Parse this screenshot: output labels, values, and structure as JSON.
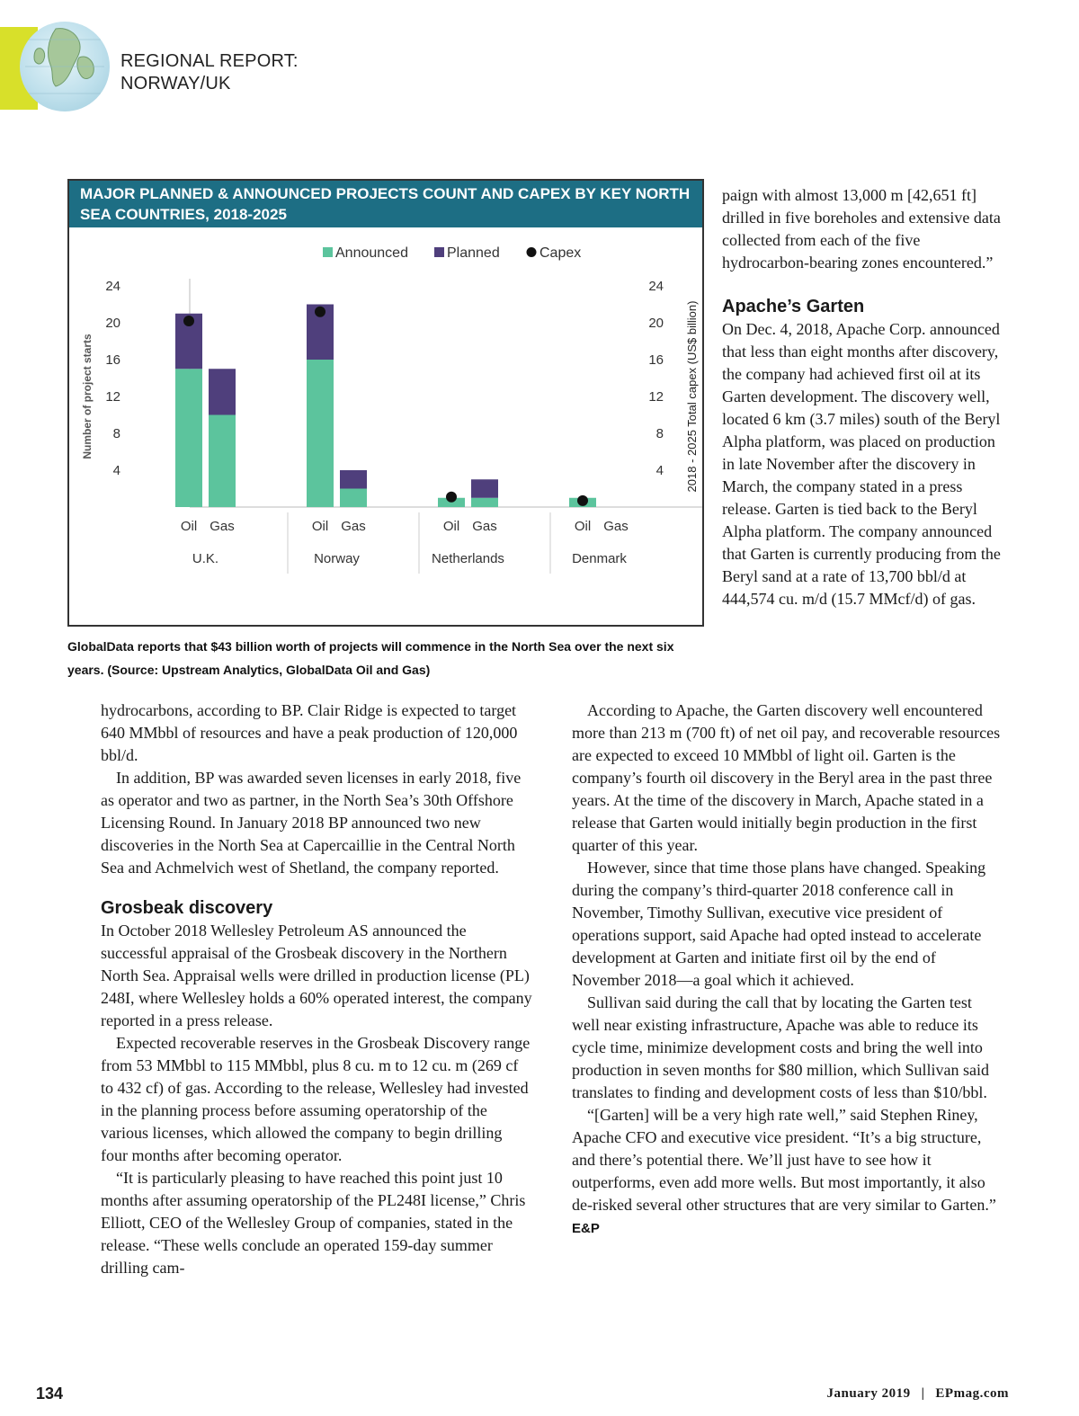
{
  "header": {
    "line1": "REGIONAL REPORT:",
    "line2": "NORWAY/UK"
  },
  "figure": {
    "title": "MAJOR PLANNED & ANNOUNCED PROJECTS COUNT AND CAPEX BY KEY NORTH SEA COUNTRIES, 2018-2025",
    "caption": "GlobalData reports that $43 billion worth of projects will commence in the North Sea over the next six years. (Source: Upstream Analytics, GlobalData Oil and Gas)"
  },
  "chart_data": {
    "type": "bar",
    "stacked": true,
    "title": "MAJOR PLANNED & ANNOUNCED PROJECTS COUNT AND CAPEX BY KEY NORTH SEA COUNTRIES, 2018-2025",
    "ylabel": "Number of project starts",
    "y2label": "2018 - 2025 Total capex (US$ billion)",
    "ylim": [
      0,
      24
    ],
    "y2lim": [
      0,
      24
    ],
    "yticks": [
      "4",
      "8",
      "12",
      "16",
      "20",
      "24"
    ],
    "legend_position": "top",
    "groups": [
      "U.K.",
      "Norway",
      "Netherlands",
      "Denmark"
    ],
    "categories": [
      "Oil",
      "Gas",
      "Oil",
      "Gas",
      "Oil",
      "Gas",
      "Oil",
      "Gas"
    ],
    "series": [
      {
        "name": "Announced",
        "color": "#5cc49d",
        "values": [
          15,
          10,
          16,
          2,
          1,
          1,
          1,
          0
        ]
      },
      {
        "name": "Planned",
        "color": "#4f3f7c",
        "values": [
          6,
          5,
          6,
          2,
          0,
          2,
          0,
          0
        ]
      }
    ],
    "capex": {
      "name": "Capex",
      "color": "#111111",
      "values": [
        20.2,
        21.2,
        1.1,
        0.7
      ]
    },
    "grid": false
  },
  "left_col": {
    "p1": "hydrocarbons, according to BP. Clair Ridge is expected to target 640 MMbbl of resources and have a peak production of 120,000 bbl/d.",
    "p2": "In addition, BP was awarded seven licenses in early 2018, five as operator and two as partner, in the North Sea’s 30th Offshore Licensing Round. In January 2018 BP announced two new discoveries in the North Sea at Capercaillie in the Central North Sea and Achmelvich west of Shetland, the company reported.",
    "h1": "Grosbeak discovery",
    "p3": "In October 2018 Wellesley Petroleum AS announced the successful appraisal of the Grosbeak discovery in the Northern North Sea. Appraisal wells were drilled in production license (PL) 248I, where Wellesley holds a 60% operated interest, the company reported in a press release.",
    "p4": "Expected recoverable reserves in the Grosbeak Discovery range from 53 MMbbl to 115 MMbbl, plus 8 cu. m to 12 cu. m (269 cf to 432 cf) of gas. According to the release, Wellesley had invested in the planning process before assuming operatorship of the various licenses, which allowed the company to begin drilling four months after becoming operator.",
    "p5": "“It is particularly pleasing to have reached this point just 10 months after assuming operatorship of the PL248I license,” Chris Elliott, CEO of the Wellesley Group of companies, stated in the release. “These wells conclude an operated 159-day summer drilling cam-"
  },
  "right_top": {
    "p1": "paign with almost 13,000 m [42,651 ft] drilled in five boreholes and extensive data collected from each of the five hydrocarbon-bearing zones encountered.”",
    "h1": "Apache’s Garten",
    "p2": "On Dec. 4, 2018, Apache Corp. announced that less than eight months after discovery, the company had achieved first oil at its Garten development. The discovery well, located 6 km (3.7 miles) south of the Beryl Alpha platform, was placed on production in late November after the discovery in March, the company stated in a press release. Garten is tied back to the Beryl Alpha platform. The company announced that Garten is currently producing from the Beryl sand at a rate of 13,700 bbl/d at 444,574 cu. m/d (15.7 MMcf/d) of gas."
  },
  "right_col": {
    "p1": "According to Apache, the Garten discovery well encountered more than 213 m (700 ft) of net oil pay, and recoverable resources are expected to exceed 10 MMbbl of light oil. Garten is the company’s fourth oil discovery in the Beryl area in the past three years. At the time of the discovery in March, Apache stated in a release that Garten would initially begin production in the first quarter of this year.",
    "p2": "However, since that time those plans have changed. Speaking during the company’s third-quarter 2018 conference call in November, Timothy Sullivan, executive vice president of operations support, said Apache had opted instead to accelerate development at Garten and initiate first oil by the end of November 2018—a goal which it achieved.",
    "p3": "Sullivan said during the call that by locating the Garten test well near existing infrastructure, Apache was able to reduce its cycle time, minimize development costs and bring the well into production in seven months for $80 million, which Sullivan said translates to finding and development costs of less than $10/bbl.",
    "p4": "“[Garten] will be a very high rate well,” said Stephen Riney, Apache CFO and executive vice president. “It’s a big structure, and there’s potential there. We’ll just have to see how it outperforms, even add more wells. But most importantly, it also de-risked several other structures that are very similar to Garten.”",
    "endmark": "E&P"
  },
  "footer": {
    "page": "134",
    "date": "January 2019",
    "separator": "|",
    "site": "EPmag.com"
  }
}
